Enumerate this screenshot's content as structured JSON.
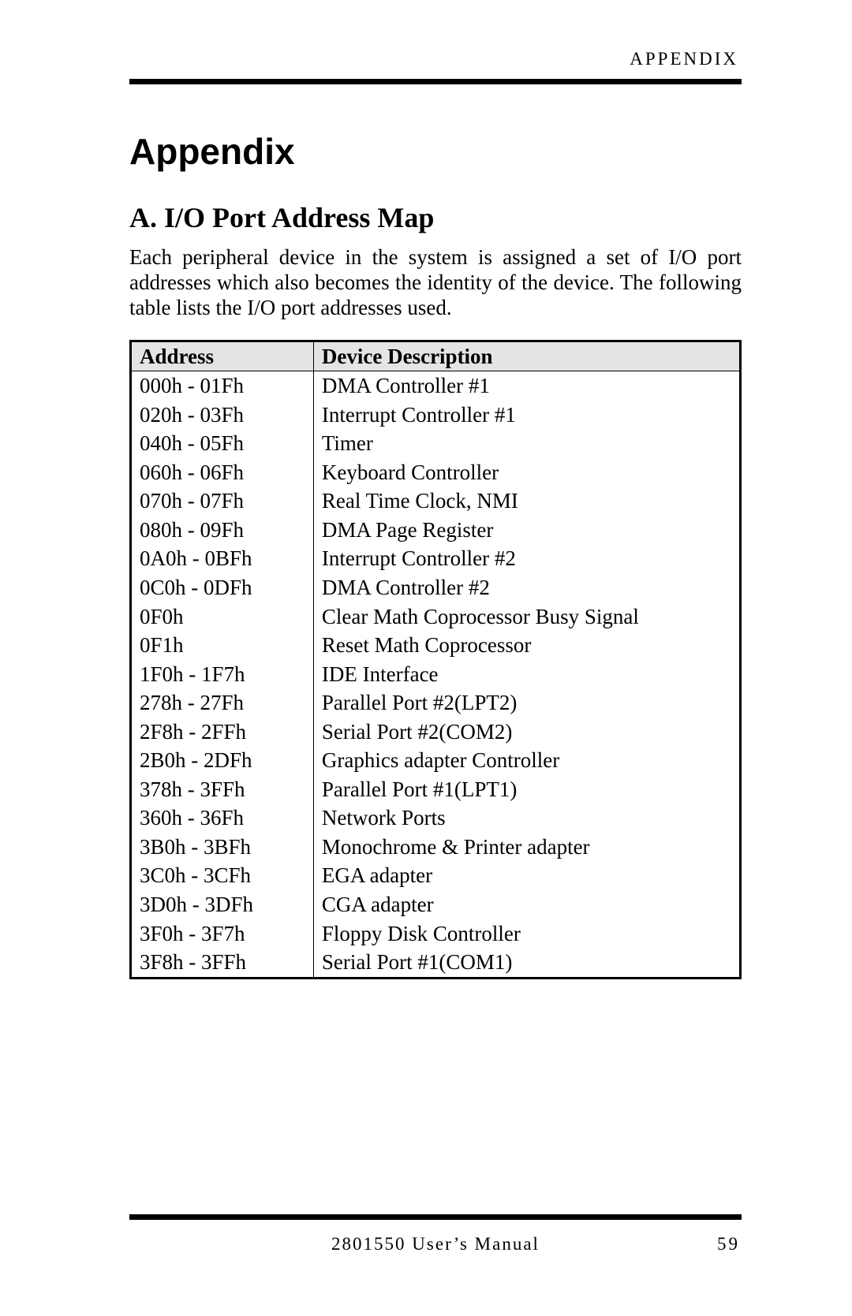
{
  "header": {
    "label": "APPENDIX"
  },
  "title": "Appendix",
  "section": {
    "heading": "A. I/O Port Address Map",
    "intro": "Each peripheral device in the system is assigned a set of I/O port addresses which also becomes the identity of the device. The following table lists the I/O port addresses used."
  },
  "table": {
    "columns": [
      "Address",
      "Device Description"
    ],
    "rows": [
      [
        "000h - 01Fh",
        "DMA Controller #1"
      ],
      [
        "020h - 03Fh",
        "Interrupt Controller #1"
      ],
      [
        "040h - 05Fh",
        "Timer"
      ],
      [
        "060h - 06Fh",
        "Keyboard Controller"
      ],
      [
        "070h - 07Fh",
        "Real Time Clock, NMI"
      ],
      [
        "080h - 09Fh",
        "DMA Page Register"
      ],
      [
        "0A0h - 0BFh",
        "Interrupt Controller #2"
      ],
      [
        "0C0h - 0DFh",
        "DMA Controller #2"
      ],
      [
        "0F0h",
        "Clear Math Coprocessor Busy Signal"
      ],
      [
        "0F1h",
        "Reset Math Coprocessor"
      ],
      [
        "1F0h - 1F7h",
        "IDE Interface"
      ],
      [
        "278h - 27Fh",
        "Parallel Port #2(LPT2)"
      ],
      [
        "2F8h - 2FFh",
        "Serial Port #2(COM2)"
      ],
      [
        "2B0h - 2DFh",
        "Graphics adapter Controller"
      ],
      [
        "378h - 3FFh",
        "Parallel Port #1(LPT1)"
      ],
      [
        "360h - 36Fh",
        "Network Ports"
      ],
      [
        "3B0h - 3BFh",
        "Monochrome & Printer adapter"
      ],
      [
        "3C0h - 3CFh",
        "EGA adapter"
      ],
      [
        "3D0h - 3DFh",
        "CGA adapter"
      ],
      [
        "3F0h - 3F7h",
        "Floppy Disk Controller"
      ],
      [
        "3F8h - 3FFh",
        "Serial Port #1(COM1)"
      ]
    ],
    "header_bg": "#e4e4e4",
    "border_color": "#000000"
  },
  "footer": {
    "center": "2801550 User’s Manual",
    "page": "59"
  }
}
